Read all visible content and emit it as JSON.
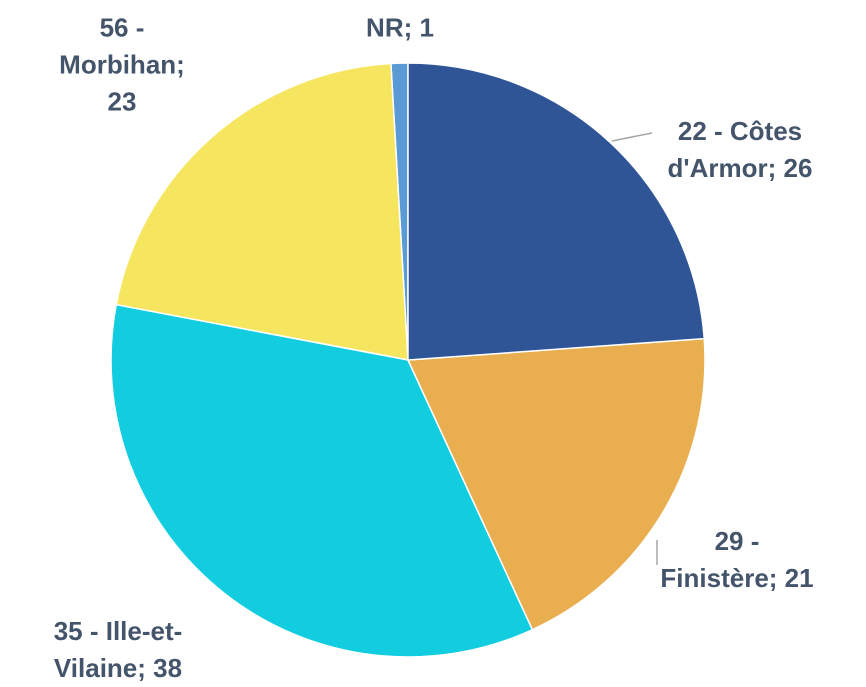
{
  "chart_data": {
    "type": "pie",
    "values": [
      26,
      21,
      38,
      23,
      1
    ],
    "value_labels": [
      "22 - Côtes d'Armor; 26",
      "29 - Finistère; 21",
      "35 - Ille-et-Vilaine; 38",
      "56 - Morbihan; 23",
      "NR; 1"
    ],
    "colors": [
      "#2f5597",
      "#e9ae4f",
      "#12cde0",
      "#f6e65f",
      "#5b9bd5"
    ],
    "start_angle": 90,
    "direction": "clockwise"
  }
}
